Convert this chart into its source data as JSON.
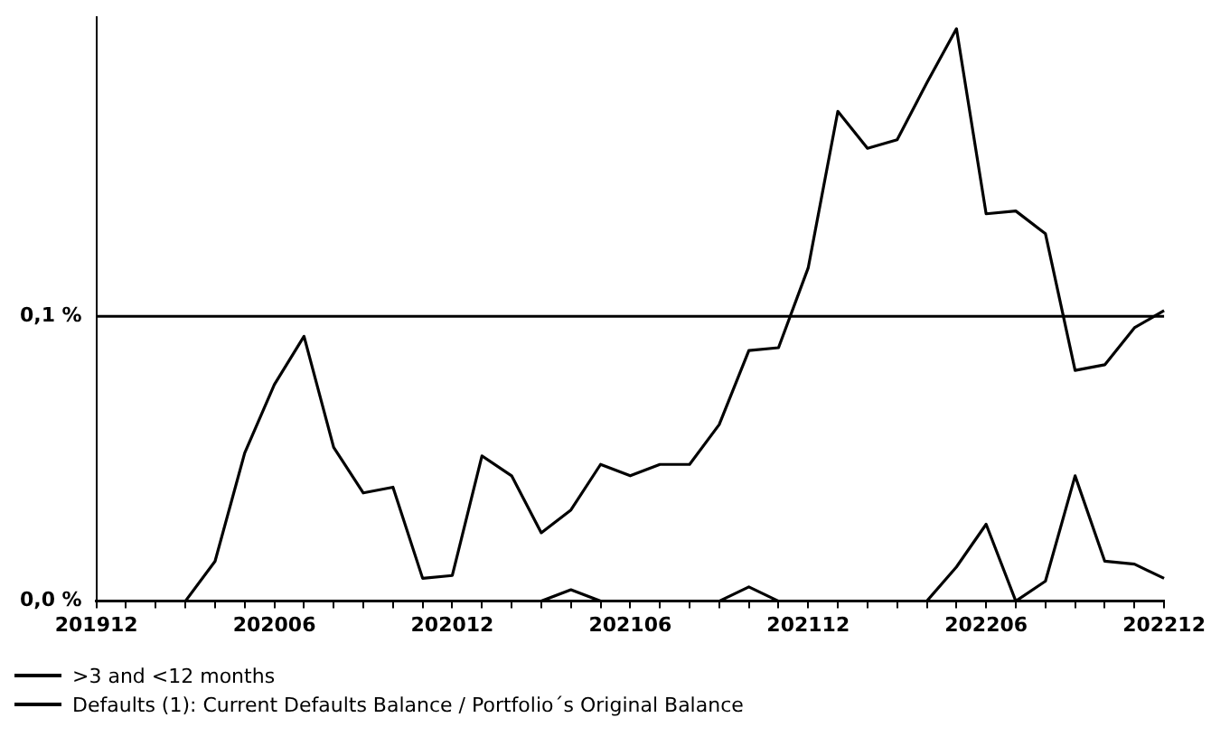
{
  "chart_data": {
    "type": "line",
    "categories": [
      "201912",
      null,
      null,
      null,
      null,
      null,
      "202006",
      null,
      null,
      null,
      null,
      null,
      "202012",
      null,
      null,
      null,
      null,
      null,
      "202106",
      null,
      null,
      null,
      null,
      null,
      "202112",
      null,
      null,
      null,
      null,
      null,
      "202206",
      null,
      null,
      null,
      null,
      null,
      "202212"
    ],
    "series": [
      {
        "name": ">3 and <12 months",
        "color": "#000000",
        "values": [
          0,
          0,
          0,
          0,
          0.014,
          0.052,
          0.076,
          0.093,
          0.054,
          0.038,
          0.04,
          0.008,
          0.009,
          0.051,
          0.044,
          0.024,
          0.032,
          0.048,
          0.044,
          0.048,
          0.048,
          0.062,
          0.088,
          0.089,
          0.117,
          0.172,
          0.159,
          0.162,
          0.182,
          0.201,
          0.136,
          0.137,
          0.129,
          0.081,
          0.083,
          0.096,
          0.102
        ]
      },
      {
        "name": "Defaults (1): Current Defaults Balance / Portfolio´s Original Balance",
        "color": "#000000",
        "values": [
          0,
          0,
          0,
          0,
          0,
          0,
          0,
          0,
          0,
          0,
          0,
          0,
          0,
          0,
          0,
          0,
          0.004,
          0,
          0,
          0,
          0,
          0,
          0.005,
          0,
          0,
          0,
          0,
          0,
          0,
          0.012,
          0.027,
          0,
          0.007,
          0.044,
          0.014,
          0.013,
          0.008
        ]
      }
    ],
    "ylim": [
      0,
      0.205
    ],
    "yticks": [
      {
        "value": 0,
        "label": "0,0 %"
      },
      {
        "value": 0.1,
        "label": "0,1 %"
      }
    ],
    "ref_lines": [
      {
        "axis": "y",
        "value": 0.1,
        "color": "#000000"
      }
    ],
    "legend": "bottom left",
    "marker": "none",
    "line_style": "solid"
  }
}
